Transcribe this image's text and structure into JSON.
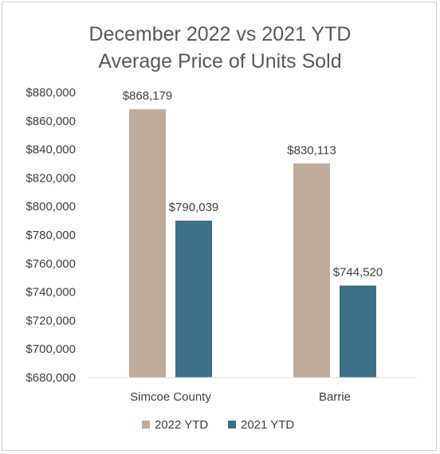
{
  "chart_data": {
    "type": "bar",
    "title_lines": [
      "December 2022 vs 2021 YTD",
      "Average Price of Units Sold"
    ],
    "categories": [
      "Simcoe County",
      "Barrie"
    ],
    "series": [
      {
        "name": "2022 YTD",
        "color": "#bfab9c",
        "values": [
          868179,
          830113
        ],
        "labels": [
          "$868,179",
          "$830,113"
        ]
      },
      {
        "name": "2021 YTD",
        "color": "#3d7088",
        "values": [
          790039,
          744520
        ],
        "labels": [
          "$790,039",
          "$744,520"
        ]
      }
    ],
    "ylim": [
      680000,
      880000
    ],
    "y_ticks": [
      680000,
      700000,
      720000,
      740000,
      760000,
      780000,
      800000,
      820000,
      840000,
      860000,
      880000
    ],
    "y_tick_labels": [
      "$680,000",
      "$700,000",
      "$720,000",
      "$740,000",
      "$760,000",
      "$780,000",
      "$800,000",
      "$820,000",
      "$840,000",
      "$860,000",
      "$880,000"
    ],
    "grid": false,
    "legend_position": "bottom"
  }
}
